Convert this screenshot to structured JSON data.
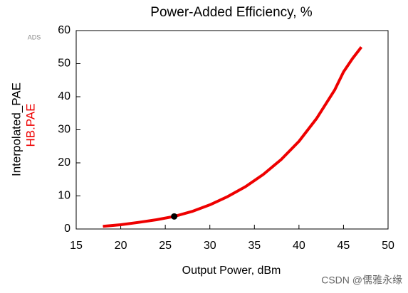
{
  "chart_data": {
    "type": "line",
    "title": "Power-Added Efficiency, %",
    "badge": "ADS",
    "x_label": "Output Power, dBm",
    "watermark": "CSDN @儒雅永缘",
    "x": [
      18,
      20,
      22,
      24,
      26,
      28,
      30,
      32,
      34,
      36,
      38,
      40,
      42,
      44,
      45,
      46,
      47
    ],
    "series": [
      {
        "name": "Interpolated_PAE",
        "color": "#000000",
        "values": [
          0.8,
          1.3,
          2,
          2.8,
          3.8,
          5.3,
          7.3,
          9.8,
          12.8,
          16.5,
          21,
          26.5,
          33.5,
          42,
          47.5,
          51.5,
          55
        ]
      },
      {
        "name": "HB.PAE",
        "color": "#ee0000",
        "values": [
          0.8,
          1.3,
          2,
          2.8,
          3.8,
          5.3,
          7.3,
          9.8,
          12.8,
          16.5,
          21,
          26.5,
          33.5,
          42,
          47.5,
          51.5,
          55
        ]
      }
    ],
    "marker": {
      "x": 26,
      "y": 3.8,
      "color": "#000000"
    },
    "xlim": [
      15,
      50
    ],
    "xticks": [
      15,
      20,
      25,
      30,
      35,
      40,
      45,
      50
    ],
    "ylim": [
      0,
      60
    ],
    "yticks": [
      0,
      10,
      20,
      30,
      40,
      50,
      60
    ]
  }
}
